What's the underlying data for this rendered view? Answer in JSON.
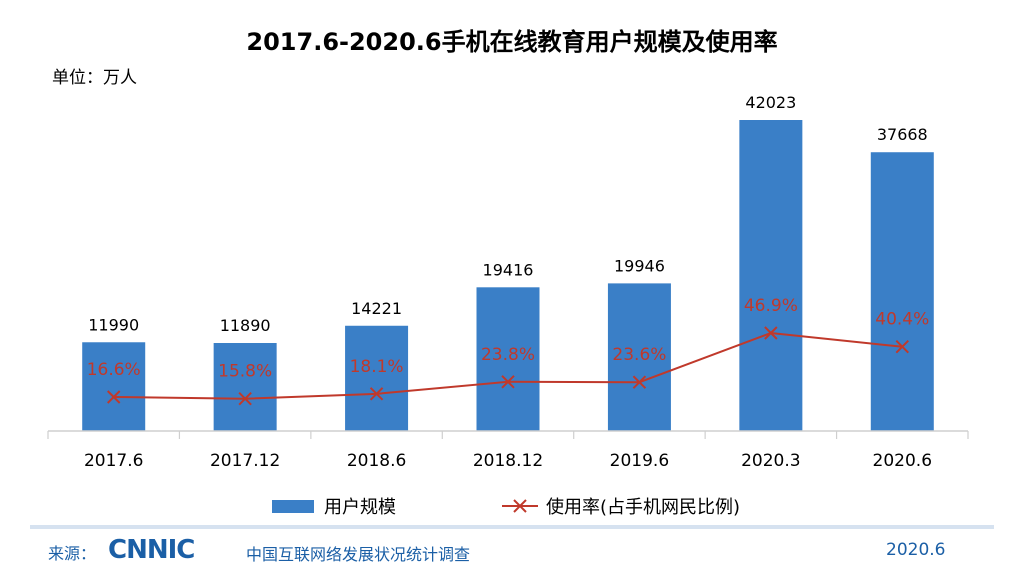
{
  "title": "2017.6-2020.6手机在线教育用户规模及使用率",
  "unit_label": "单位：万人",
  "legend": {
    "bar_label": "用户规模",
    "line_label": "使用率(占手机网民比例)"
  },
  "footer": {
    "source_label": "来源：",
    "org_logo_text": "CNNIC",
    "org_name": "中国互联网络发展状况统计调查",
    "date": "2020.6"
  },
  "colors": {
    "bar": "#3a7fc7",
    "line": "#c0392b"
  },
  "chart_data": {
    "type": "bar",
    "categories": [
      "2017.6",
      "2017.12",
      "2018.6",
      "2018.12",
      "2019.6",
      "2020.3",
      "2020.6"
    ],
    "series": [
      {
        "name": "用户规模",
        "type": "bar",
        "values": [
          11990,
          11890,
          14221,
          19416,
          19946,
          42023,
          37668
        ]
      },
      {
        "name": "使用率(占手机网民比例)",
        "type": "line",
        "values": [
          16.6,
          15.8,
          18.1,
          23.8,
          23.6,
          46.9,
          40.4
        ],
        "labels": [
          "16.6%",
          "15.8%",
          "18.1%",
          "23.8%",
          "23.6%",
          "46.9%",
          "40.4%"
        ]
      }
    ],
    "legend_position": "bottom",
    "grid": false
  }
}
